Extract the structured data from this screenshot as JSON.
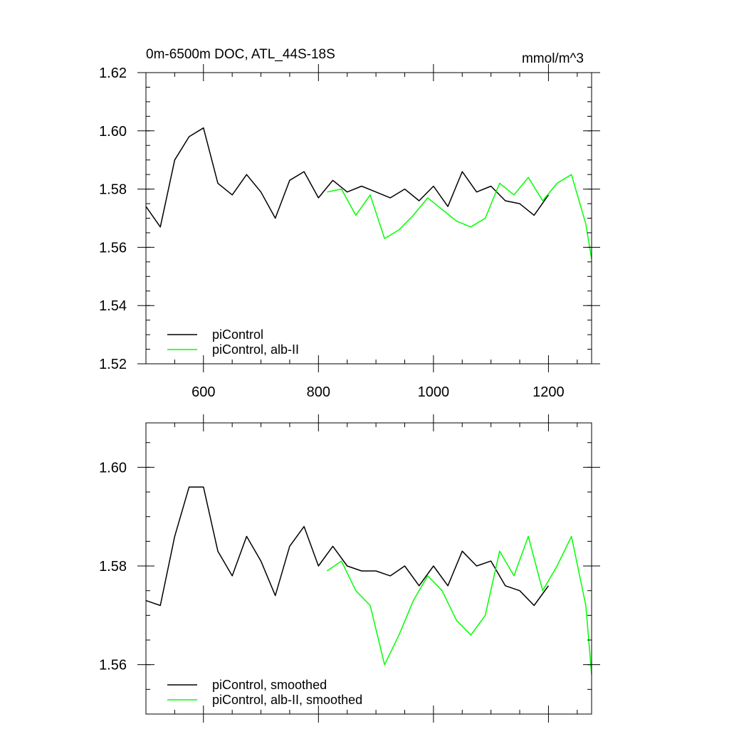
{
  "chart_data": [
    {
      "type": "line",
      "title": "0m-6500m DOC, ATL_44S-18S",
      "units": "mmol/m^3",
      "xlabel": "",
      "ylabel": "",
      "xlim": [
        500,
        1275
      ],
      "ylim": [
        1.52,
        1.62
      ],
      "xticks": [
        600,
        800,
        1000,
        1200
      ],
      "xtick_labels": [
        "600",
        "800",
        "1000",
        "1200"
      ],
      "yticks": [
        1.52,
        1.54,
        1.56,
        1.58,
        1.6,
        1.62
      ],
      "ytick_labels": [
        "1.52",
        "1.54",
        "1.56",
        "1.58",
        "1.60",
        "1.62"
      ],
      "legend_position": "bottom-left",
      "grid": false,
      "series": [
        {
          "name": "piControl",
          "color": "#000000",
          "x": [
            500,
            525,
            550,
            575,
            600,
            625,
            650,
            675,
            700,
            725,
            750,
            775,
            800,
            825,
            850,
            875,
            900,
            925,
            950,
            975,
            1000,
            1025,
            1050,
            1075,
            1100,
            1125,
            1150,
            1175,
            1200
          ],
          "y": [
            1.574,
            1.567,
            1.59,
            1.598,
            1.601,
            1.582,
            1.578,
            1.585,
            1.579,
            1.57,
            1.583,
            1.586,
            1.577,
            1.583,
            1.579,
            1.581,
            1.579,
            1.577,
            1.58,
            1.576,
            1.581,
            1.574,
            1.586,
            1.579,
            1.581,
            1.576,
            1.575,
            1.571,
            1.578
          ]
        },
        {
          "name": "piControl, alb-II",
          "color": "#00ff00",
          "x": [
            815,
            840,
            865,
            890,
            915,
            940,
            965,
            990,
            1015,
            1040,
            1065,
            1090,
            1115,
            1140,
            1165,
            1190,
            1215,
            1240,
            1265,
            1275
          ],
          "y": [
            1.579,
            1.58,
            1.571,
            1.578,
            1.563,
            1.566,
            1.571,
            1.577,
            1.573,
            1.569,
            1.567,
            1.57,
            1.582,
            1.578,
            1.584,
            1.576,
            1.582,
            1.585,
            1.568,
            1.556
          ]
        }
      ]
    },
    {
      "type": "line",
      "title": "",
      "xlabel": "",
      "ylabel": "",
      "xlim": [
        500,
        1275
      ],
      "ylim": [
        1.55,
        1.609
      ],
      "xticks": [
        600,
        800,
        1000,
        1200
      ],
      "yticks": [
        1.56,
        1.58,
        1.6
      ],
      "ytick_labels": [
        "1.56",
        "1.58",
        "1.60"
      ],
      "legend_position": "bottom-left",
      "grid": false,
      "series": [
        {
          "name": "piControl, smoothed",
          "color": "#000000",
          "x": [
            500,
            525,
            550,
            575,
            600,
            625,
            650,
            675,
            700,
            725,
            750,
            775,
            800,
            825,
            850,
            875,
            900,
            925,
            950,
            975,
            1000,
            1025,
            1050,
            1075,
            1100,
            1125,
            1150,
            1175,
            1200
          ],
          "y": [
            1.573,
            1.572,
            1.586,
            1.596,
            1.596,
            1.583,
            1.578,
            1.586,
            1.581,
            1.574,
            1.584,
            1.588,
            1.58,
            1.584,
            1.58,
            1.579,
            1.579,
            1.578,
            1.58,
            1.576,
            1.58,
            1.576,
            1.583,
            1.58,
            1.581,
            1.576,
            1.575,
            1.572,
            1.576
          ]
        },
        {
          "name": "piControl, alb-II, smoothed",
          "color": "#00ff00",
          "x": [
            815,
            840,
            865,
            890,
            915,
            940,
            965,
            990,
            1015,
            1040,
            1065,
            1090,
            1115,
            1140,
            1165,
            1190,
            1215,
            1240,
            1265,
            1275
          ],
          "y": [
            1.579,
            1.581,
            1.575,
            1.572,
            1.56,
            1.566,
            1.573,
            1.578,
            1.575,
            1.569,
            1.566,
            1.57,
            1.583,
            1.578,
            1.586,
            1.575,
            1.58,
            1.586,
            1.572,
            1.558
          ]
        }
      ]
    }
  ]
}
